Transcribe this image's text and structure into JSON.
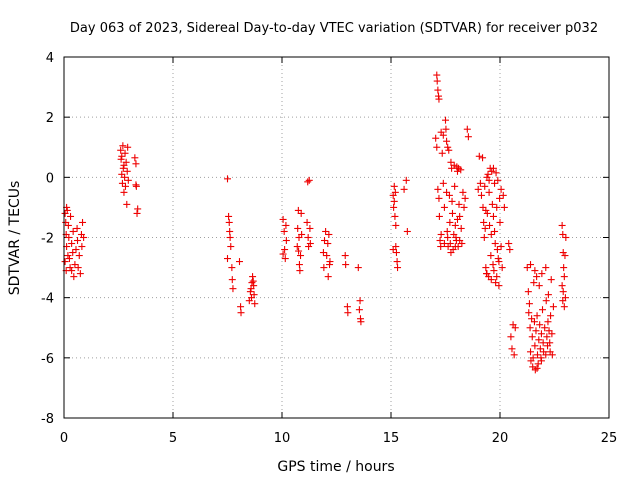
{
  "chart_data": {
    "type": "scatter",
    "title": "Day 063 of 2023, Sidereal Day-to-day VTEC variation (SDTVAR) for receiver p032",
    "xlabel": "GPS time / hours",
    "ylabel": "SDTVAR / TECUs",
    "xlim": [
      0,
      25
    ],
    "ylim": [
      -8,
      4
    ],
    "xticks": [
      0,
      5,
      10,
      15,
      20,
      25
    ],
    "xtick_labels": [
      "0",
      "5",
      "10",
      "15",
      "20",
      "25"
    ],
    "yticks": [
      -8,
      -6,
      -4,
      -2,
      0,
      2,
      4
    ],
    "ytick_labels": [
      "-8",
      "-6",
      "-4",
      "-2",
      "0",
      "2",
      "4"
    ],
    "grid": true,
    "marker": "+",
    "color": "#ee0000",
    "series": [
      {
        "name": "SDTVAR",
        "points": [
          [
            0.05,
            -1.2
          ],
          [
            0.08,
            -1.5
          ],
          [
            0.1,
            -1.9
          ],
          [
            0.12,
            -2.3
          ],
          [
            0.15,
            -1.1
          ],
          [
            0.05,
            -2.8
          ],
          [
            0.1,
            -3.1
          ],
          [
            0.18,
            -2.6
          ],
          [
            0.2,
            -1.6
          ],
          [
            0.22,
            -2.0
          ],
          [
            0.25,
            -2.7
          ],
          [
            0.28,
            -3.0
          ],
          [
            0.3,
            -1.3
          ],
          [
            0.35,
            -2.2
          ],
          [
            0.4,
            -2.5
          ],
          [
            0.42,
            -1.8
          ],
          [
            0.45,
            -3.3
          ],
          [
            0.5,
            -2.9
          ],
          [
            0.55,
            -2.4
          ],
          [
            0.6,
            -1.7
          ],
          [
            0.62,
            -2.1
          ],
          [
            0.65,
            -3.0
          ],
          [
            0.7,
            -2.6
          ],
          [
            0.75,
            -3.2
          ],
          [
            0.8,
            -1.9
          ],
          [
            0.82,
            -2.3
          ],
          [
            0.85,
            -1.5
          ],
          [
            0.9,
            -2.0
          ],
          [
            0.12,
            -1.0
          ],
          [
            0.35,
            -3.1
          ],
          [
            2.6,
            0.9
          ],
          [
            2.62,
            0.6
          ],
          [
            2.65,
            0.1
          ],
          [
            2.68,
            -0.2
          ],
          [
            2.7,
            1.05
          ],
          [
            2.72,
            0.3
          ],
          [
            2.75,
            -0.5
          ],
          [
            2.78,
            0.0
          ],
          [
            2.8,
            0.8
          ],
          [
            2.82,
            -0.3
          ],
          [
            2.85,
            0.5
          ],
          [
            2.88,
            -0.9
          ],
          [
            2.9,
            0.2
          ],
          [
            2.92,
            1.0
          ],
          [
            2.95,
            -0.1
          ],
          [
            2.65,
            0.7
          ],
          [
            2.75,
            0.4
          ],
          [
            3.25,
            0.65
          ],
          [
            3.3,
            0.45
          ],
          [
            3.32,
            -0.3
          ],
          [
            3.35,
            -1.2
          ],
          [
            3.3,
            -0.25
          ],
          [
            3.38,
            -1.05
          ],
          [
            7.5,
            -0.05
          ],
          [
            7.55,
            -1.3
          ],
          [
            7.5,
            -2.7
          ],
          [
            7.6,
            -1.8
          ],
          [
            7.65,
            -2.3
          ],
          [
            7.7,
            -3.0
          ],
          [
            7.72,
            -3.4
          ],
          [
            7.75,
            -3.7
          ],
          [
            7.58,
            -1.5
          ],
          [
            7.62,
            -2.0
          ],
          [
            8.05,
            -2.8
          ],
          [
            8.1,
            -4.3
          ],
          [
            8.12,
            -4.5
          ],
          [
            8.5,
            -4.1
          ],
          [
            8.55,
            -3.8
          ],
          [
            8.6,
            -4.0
          ],
          [
            8.62,
            -3.5
          ],
          [
            8.65,
            -3.3
          ],
          [
            8.7,
            -3.6
          ],
          [
            8.72,
            -3.9
          ],
          [
            8.75,
            -4.2
          ],
          [
            8.58,
            -3.7
          ],
          [
            8.68,
            -3.45
          ],
          [
            10.05,
            -1.4
          ],
          [
            10.1,
            -1.8
          ],
          [
            10.12,
            -2.4
          ],
          [
            10.15,
            -2.7
          ],
          [
            10.18,
            -1.6
          ],
          [
            10.2,
            -2.1
          ],
          [
            10.05,
            -2.55
          ],
          [
            10.7,
            -2.3
          ],
          [
            10.72,
            -1.7
          ],
          [
            10.75,
            -1.1
          ],
          [
            10.78,
            -2.0
          ],
          [
            10.8,
            -2.9
          ],
          [
            10.82,
            -3.1
          ],
          [
            10.85,
            -2.6
          ],
          [
            10.9,
            -1.9
          ],
          [
            10.88,
            -1.2
          ],
          [
            10.76,
            -2.45
          ],
          [
            11.15,
            -1.5
          ],
          [
            11.2,
            -2.0
          ],
          [
            11.22,
            -2.3
          ],
          [
            11.25,
            -0.1
          ],
          [
            11.28,
            -1.7
          ],
          [
            11.3,
            -2.2
          ],
          [
            11.18,
            -0.15
          ],
          [
            11.9,
            -2.5
          ],
          [
            11.92,
            -3.0
          ],
          [
            11.95,
            -2.1
          ],
          [
            12.0,
            -1.8
          ],
          [
            12.05,
            -2.6
          ],
          [
            12.1,
            -2.2
          ],
          [
            12.12,
            -3.3
          ],
          [
            12.15,
            -1.9
          ],
          [
            12.2,
            -2.8
          ],
          [
            12.18,
            -2.9
          ],
          [
            12.9,
            -2.6
          ],
          [
            12.92,
            -2.9
          ],
          [
            13.0,
            -4.3
          ],
          [
            13.02,
            -4.5
          ],
          [
            13.5,
            -3.0
          ],
          [
            13.55,
            -4.4
          ],
          [
            13.6,
            -4.7
          ],
          [
            13.62,
            -4.8
          ],
          [
            13.58,
            -4.1
          ],
          [
            15.1,
            -0.6
          ],
          [
            15.12,
            -1.0
          ],
          [
            15.15,
            -0.8
          ],
          [
            15.18,
            -1.3
          ],
          [
            15.2,
            -0.5
          ],
          [
            15.22,
            -2.3
          ],
          [
            15.25,
            -2.5
          ],
          [
            15.28,
            -2.8
          ],
          [
            15.3,
            -3.0
          ],
          [
            15.1,
            -2.4
          ],
          [
            15.15,
            -0.3
          ],
          [
            15.22,
            -1.6
          ],
          [
            15.6,
            -0.4
          ],
          [
            15.7,
            -0.1
          ],
          [
            15.75,
            -1.8
          ],
          [
            17.1,
            3.4
          ],
          [
            17.12,
            3.2
          ],
          [
            17.15,
            2.9
          ],
          [
            17.18,
            2.7
          ],
          [
            17.2,
            2.6
          ],
          [
            17.05,
            1.3
          ],
          [
            17.1,
            1.0
          ],
          [
            17.15,
            -0.4
          ],
          [
            17.2,
            -0.7
          ],
          [
            17.22,
            -1.3
          ],
          [
            17.25,
            -2.1
          ],
          [
            17.28,
            -2.3
          ],
          [
            17.3,
            1.5
          ],
          [
            17.35,
            0.8
          ],
          [
            17.4,
            -0.2
          ],
          [
            17.45,
            -1.0
          ],
          [
            17.5,
            1.9
          ],
          [
            17.52,
            1.6
          ],
          [
            17.55,
            1.2
          ],
          [
            17.58,
            -1.8
          ],
          [
            17.6,
            -2.0
          ],
          [
            17.62,
            -2.3
          ],
          [
            17.65,
            0.9
          ],
          [
            17.68,
            -0.6
          ],
          [
            17.7,
            -1.5
          ],
          [
            17.72,
            -2.2
          ],
          [
            17.75,
            0.5
          ],
          [
            17.78,
            0.3
          ],
          [
            17.8,
            -0.8
          ],
          [
            17.82,
            -1.2
          ],
          [
            17.85,
            -2.4
          ],
          [
            17.88,
            -1.9
          ],
          [
            17.9,
            0.4
          ],
          [
            17.92,
            -0.3
          ],
          [
            17.95,
            -1.6
          ],
          [
            17.98,
            -2.0
          ],
          [
            18.0,
            -2.1
          ],
          [
            18.02,
            0.35
          ],
          [
            18.05,
            -1.4
          ],
          [
            18.08,
            -2.3
          ],
          [
            18.1,
            0.3
          ],
          [
            18.12,
            -0.9
          ],
          [
            18.15,
            -2.1
          ],
          [
            18.2,
            0.25
          ],
          [
            18.22,
            -1.7
          ],
          [
            18.25,
            -2.2
          ],
          [
            18.3,
            -0.5
          ],
          [
            18.35,
            -1.0
          ],
          [
            18.4,
            -0.7
          ],
          [
            18.5,
            1.6
          ],
          [
            18.55,
            1.35
          ],
          [
            17.4,
            1.4
          ],
          [
            17.6,
            1.0
          ],
          [
            17.3,
            -1.9
          ],
          [
            17.55,
            -0.5
          ],
          [
            17.75,
            -2.5
          ],
          [
            17.95,
            -2.3
          ],
          [
            18.05,
            0.2
          ],
          [
            18.15,
            -1.3
          ],
          [
            17.45,
            -2.2
          ],
          [
            19.0,
            -0.4
          ],
          [
            19.05,
            0.7
          ],
          [
            19.1,
            -0.2
          ],
          [
            19.15,
            -0.6
          ],
          [
            19.2,
            0.65
          ],
          [
            19.22,
            -1.0
          ],
          [
            19.25,
            -1.5
          ],
          [
            19.28,
            -2.0
          ],
          [
            19.3,
            -0.3
          ],
          [
            19.32,
            -1.7
          ],
          [
            19.35,
            -3.0
          ],
          [
            19.38,
            -3.2
          ],
          [
            19.4,
            0.0
          ],
          [
            19.42,
            -1.2
          ],
          [
            19.45,
            0.1
          ],
          [
            19.48,
            -3.3
          ],
          [
            19.5,
            -0.5
          ],
          [
            19.52,
            -1.6
          ],
          [
            19.55,
            0.3
          ],
          [
            19.58,
            -2.6
          ],
          [
            19.6,
            -1.9
          ],
          [
            19.62,
            0.2
          ],
          [
            19.65,
            -0.9
          ],
          [
            19.68,
            -2.9
          ],
          [
            19.7,
            -1.3
          ],
          [
            19.72,
            -3.1
          ],
          [
            19.75,
            -0.2
          ],
          [
            19.78,
            -2.2
          ],
          [
            19.8,
            -3.5
          ],
          [
            19.82,
            0.15
          ],
          [
            19.85,
            -1.0
          ],
          [
            19.88,
            -2.4
          ],
          [
            19.9,
            -0.1
          ],
          [
            19.92,
            -2.7
          ],
          [
            19.95,
            -3.6
          ],
          [
            19.98,
            -0.7
          ],
          [
            20.0,
            -1.5
          ],
          [
            20.05,
            -2.3
          ],
          [
            20.1,
            -3.0
          ],
          [
            20.15,
            -0.6
          ],
          [
            20.2,
            -1.0
          ],
          [
            19.4,
            -3.2
          ],
          [
            19.6,
            -3.4
          ],
          [
            19.85,
            -3.3
          ],
          [
            19.5,
            -0.1
          ],
          [
            19.7,
            0.3
          ],
          [
            19.35,
            -1.1
          ],
          [
            19.75,
            -1.8
          ],
          [
            20.05,
            -0.4
          ],
          [
            19.95,
            -2.8
          ],
          [
            20.4,
            -2.2
          ],
          [
            20.45,
            -2.4
          ],
          [
            20.5,
            -5.3
          ],
          [
            20.55,
            -5.7
          ],
          [
            20.6,
            -4.9
          ],
          [
            20.65,
            -5.9
          ],
          [
            20.7,
            -5.0
          ],
          [
            21.25,
            -3.0
          ],
          [
            21.3,
            -3.8
          ],
          [
            21.32,
            -4.5
          ],
          [
            21.35,
            -4.2
          ],
          [
            21.38,
            -5.0
          ],
          [
            21.4,
            -5.8
          ],
          [
            21.42,
            -6.1
          ],
          [
            21.45,
            -4.7
          ],
          [
            21.48,
            -5.3
          ],
          [
            21.5,
            -6.3
          ],
          [
            21.52,
            -6.0
          ],
          [
            21.55,
            -3.5
          ],
          [
            21.58,
            -4.8
          ],
          [
            21.6,
            -5.6
          ],
          [
            21.62,
            -6.4
          ],
          [
            21.65,
            -5.1
          ],
          [
            21.68,
            -3.3
          ],
          [
            21.7,
            -4.6
          ],
          [
            21.72,
            -5.9
          ],
          [
            21.75,
            -6.2
          ],
          [
            21.78,
            -5.4
          ],
          [
            21.8,
            -3.6
          ],
          [
            21.82,
            -4.9
          ],
          [
            21.85,
            -5.7
          ],
          [
            21.88,
            -6.0
          ],
          [
            21.9,
            -5.2
          ],
          [
            21.92,
            -3.2
          ],
          [
            21.95,
            -4.4
          ],
          [
            21.98,
            -5.5
          ],
          [
            22.0,
            -5.8
          ],
          [
            22.05,
            -5.0
          ],
          [
            22.1,
            -3.0
          ],
          [
            22.12,
            -4.1
          ],
          [
            22.15,
            -5.3
          ],
          [
            22.18,
            -5.6
          ],
          [
            22.2,
            -4.8
          ],
          [
            22.22,
            -3.9
          ],
          [
            22.25,
            -5.1
          ],
          [
            22.28,
            -5.5
          ],
          [
            22.3,
            -5.8
          ],
          [
            22.32,
            -4.6
          ],
          [
            22.35,
            -3.4
          ],
          [
            22.38,
            -5.2
          ],
          [
            22.4,
            -5.9
          ],
          [
            22.45,
            -4.3
          ],
          [
            21.4,
            -2.9
          ],
          [
            21.6,
            -3.1
          ],
          [
            21.7,
            -6.35
          ],
          [
            21.9,
            -6.1
          ],
          [
            22.1,
            -5.9
          ],
          [
            22.85,
            -1.6
          ],
          [
            22.88,
            -1.9
          ],
          [
            22.9,
            -2.5
          ],
          [
            22.92,
            -3.0
          ],
          [
            22.95,
            -3.3
          ],
          [
            22.98,
            -2.6
          ],
          [
            23.0,
            -4.0
          ],
          [
            22.9,
            -3.8
          ],
          [
            22.95,
            -4.3
          ],
          [
            23.02,
            -2.0
          ],
          [
            22.85,
            -3.6
          ],
          [
            22.88,
            -4.1
          ]
        ]
      }
    ]
  }
}
